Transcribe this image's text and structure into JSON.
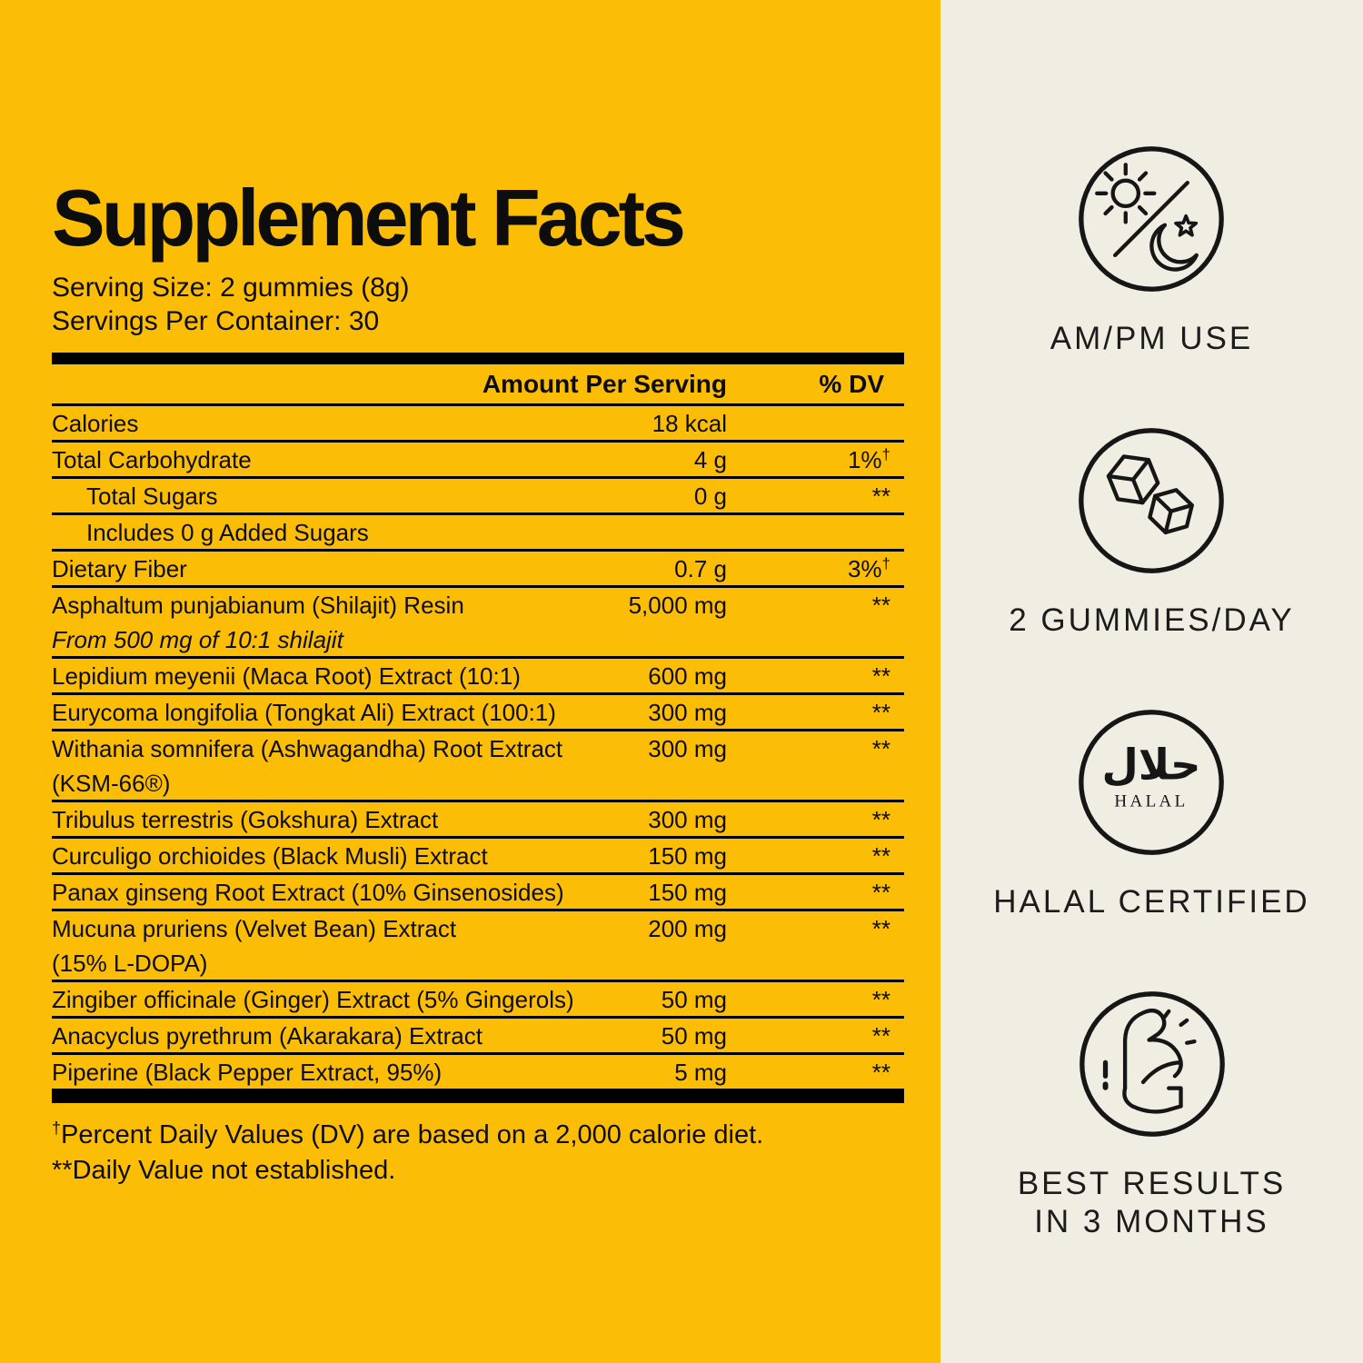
{
  "label": {
    "title": "Supplement Facts",
    "serving_size": "Serving Size: 2 gummies (8g)",
    "servings_per_container": "Servings Per Container: 30",
    "columns": {
      "amount": "Amount Per Serving",
      "dv": "% DV"
    },
    "rows": [
      {
        "name": "Calories",
        "amount": "18 kcal",
        "dv": ""
      },
      {
        "name": "Total Carbohydrate",
        "amount": "4 g",
        "dv": "1%",
        "dv_mark": "†"
      },
      {
        "name": "Total Sugars",
        "amount": "0 g",
        "dv": "**",
        "indent": true
      },
      {
        "name": "Includes 0 g Added Sugars",
        "amount": "",
        "dv": "",
        "indent": true
      },
      {
        "name": "Dietary Fiber",
        "amount": "0.7 g",
        "dv": "3%",
        "dv_mark": "†"
      },
      {
        "name": "Asphaltum punjabianum (Shilajit) Resin",
        "sub": "From 500 mg of 10:1 shilajit",
        "sub_italic": true,
        "amount": "5,000 mg",
        "dv": "**"
      },
      {
        "name": "Lepidium meyenii (Maca Root) Extract (10:1)",
        "amount": "600 mg",
        "dv": "**"
      },
      {
        "name": "Eurycoma longifolia (Tongkat Ali) Extract (100:1)",
        "amount": "300 mg",
        "dv": "**"
      },
      {
        "name": "Withania somnifera (Ashwagandha) Root Extract",
        "sub": "(KSM-66®)",
        "amount": "300 mg",
        "dv": "**"
      },
      {
        "name": "Tribulus terrestris (Gokshura) Extract",
        "amount": "300 mg",
        "dv": "**"
      },
      {
        "name": "Curculigo orchioides (Black Musli) Extract",
        "amount": "150 mg",
        "dv": "**"
      },
      {
        "name": "Panax ginseng Root Extract (10% Ginsenosides)",
        "amount": "150 mg",
        "dv": "**"
      },
      {
        "name": "Mucuna pruriens (Velvet Bean) Extract",
        "sub": "(15% L-DOPA)",
        "amount": "200 mg",
        "dv": "**"
      },
      {
        "name": "Zingiber officinale (Ginger) Extract (5% Gingerols)",
        "amount": "50 mg",
        "dv": "**"
      },
      {
        "name": "Anacyclus pyrethrum (Akarakara) Extract",
        "amount": "50 mg",
        "dv": "**"
      },
      {
        "name": "Piperine (Black Pepper Extract, 95%)",
        "amount": "5 mg",
        "dv": "**"
      }
    ],
    "footnotes": [
      {
        "mark": "†",
        "mark_superscript": true,
        "text": "Percent Daily Values (DV) are based on a 2,000 calorie diet."
      },
      {
        "mark": "**",
        "mark_superscript": false,
        "text": "Daily Value not established."
      }
    ]
  },
  "sidebar": {
    "badges": [
      {
        "icon": "sun-moon-icon",
        "label": "AM/PM USE"
      },
      {
        "icon": "gummy-cubes-icon",
        "label": "2 GUMMIES/DAY"
      },
      {
        "icon": "halal-icon",
        "label": "HALAL CERTIFIED",
        "icon_arabic": "حلال",
        "icon_caption": "HALAL"
      },
      {
        "icon": "bicep-icon",
        "label": "BEST RESULTS\nIN 3 MONTHS"
      }
    ]
  },
  "colors": {
    "background_yellow": "#FCBD07",
    "background_cream": "#F0EEE3",
    "text": "#0d0d0d",
    "rule": "#000000",
    "icon_stroke": "#161616"
  }
}
